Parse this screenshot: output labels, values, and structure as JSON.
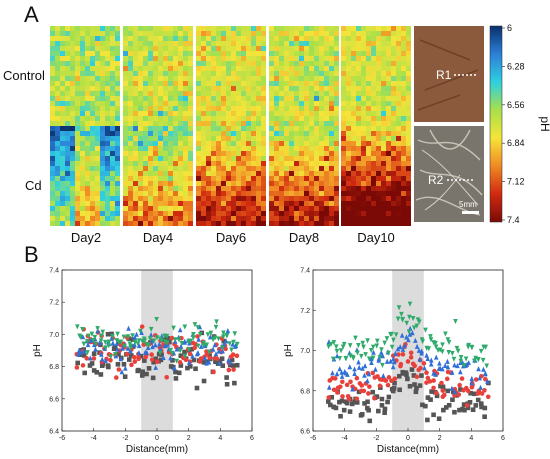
{
  "figure": {
    "panel_a_label": "A",
    "panel_b_label": "B",
    "row_labels": [
      "Control",
      "Cd"
    ],
    "day_labels": [
      "Day2",
      "Day4",
      "Day6",
      "Day8",
      "Day10"
    ],
    "region_labels": [
      "R1",
      "R2"
    ],
    "scale_bar_label": "5mm",
    "colorbar": {
      "title": "pH",
      "ticks": [
        "6",
        "6.28",
        "6.56",
        "6.84",
        "7.12",
        "7.4"
      ],
      "colors": [
        "#08306b",
        "#2c7fd8",
        "#2fd0e0",
        "#a8e04a",
        "#f5e43a",
        "#f08a24",
        "#d02a10",
        "#7a0a06"
      ]
    },
    "heatmap_intensity": {
      "control": [
        0.45,
        0.5,
        0.52,
        0.5,
        0.52
      ],
      "cd": [
        0.3,
        0.6,
        0.72,
        0.68,
        0.82
      ]
    }
  },
  "chart_data": [
    {
      "type": "scatter",
      "panel": "left",
      "xlabel": "Distance(mm)",
      "ylabel": "pH",
      "xlim": [
        -6,
        6
      ],
      "ylim": [
        6.4,
        7.4
      ],
      "x_ticks": [
        "-6",
        "-4",
        "-2",
        "0",
        "2",
        "4",
        "6"
      ],
      "y_ticks": [
        "6.4",
        "6.6",
        "6.8",
        "7.0",
        "7.2",
        "7.4"
      ],
      "shaded_region": [
        -1,
        1
      ],
      "series": [
        {
          "color": "#555555",
          "marker": "square",
          "mean": 6.84,
          "spread": 0.08,
          "dip": 0.0
        },
        {
          "color": "#e8413c",
          "marker": "circle",
          "mean": 6.9,
          "spread": 0.07,
          "dip": 0.0
        },
        {
          "color": "#2f6fd6",
          "marker": "triangle-up",
          "mean": 6.92,
          "spread": 0.06,
          "dip": 0.0
        },
        {
          "color": "#2eab6a",
          "marker": "triangle-down",
          "mean": 6.97,
          "spread": 0.05,
          "dip": 0.0
        }
      ]
    },
    {
      "type": "scatter",
      "panel": "right",
      "xlabel": "Distance(mm)",
      "ylabel": "pH",
      "xlim": [
        -6,
        6
      ],
      "ylim": [
        6.6,
        7.4
      ],
      "x_ticks": [
        "-6",
        "-4",
        "-2",
        "0",
        "2",
        "4",
        "6"
      ],
      "y_ticks": [
        "6.6",
        "6.8",
        "7.0",
        "7.2",
        "7.4"
      ],
      "shaded_region": [
        -1,
        1
      ],
      "series": [
        {
          "color": "#555555",
          "marker": "square",
          "mean": 6.76,
          "spread": 0.04,
          "peak": 0.12
        },
        {
          "color": "#e8413c",
          "marker": "circle",
          "mean": 6.84,
          "spread": 0.04,
          "peak": 0.15
        },
        {
          "color": "#2f6fd6",
          "marker": "triangle-up",
          "mean": 6.93,
          "spread": 0.04,
          "peak": 0.13
        },
        {
          "color": "#2eab6a",
          "marker": "triangle-down",
          "mean": 7.02,
          "spread": 0.04,
          "peak": 0.16
        }
      ]
    }
  ]
}
